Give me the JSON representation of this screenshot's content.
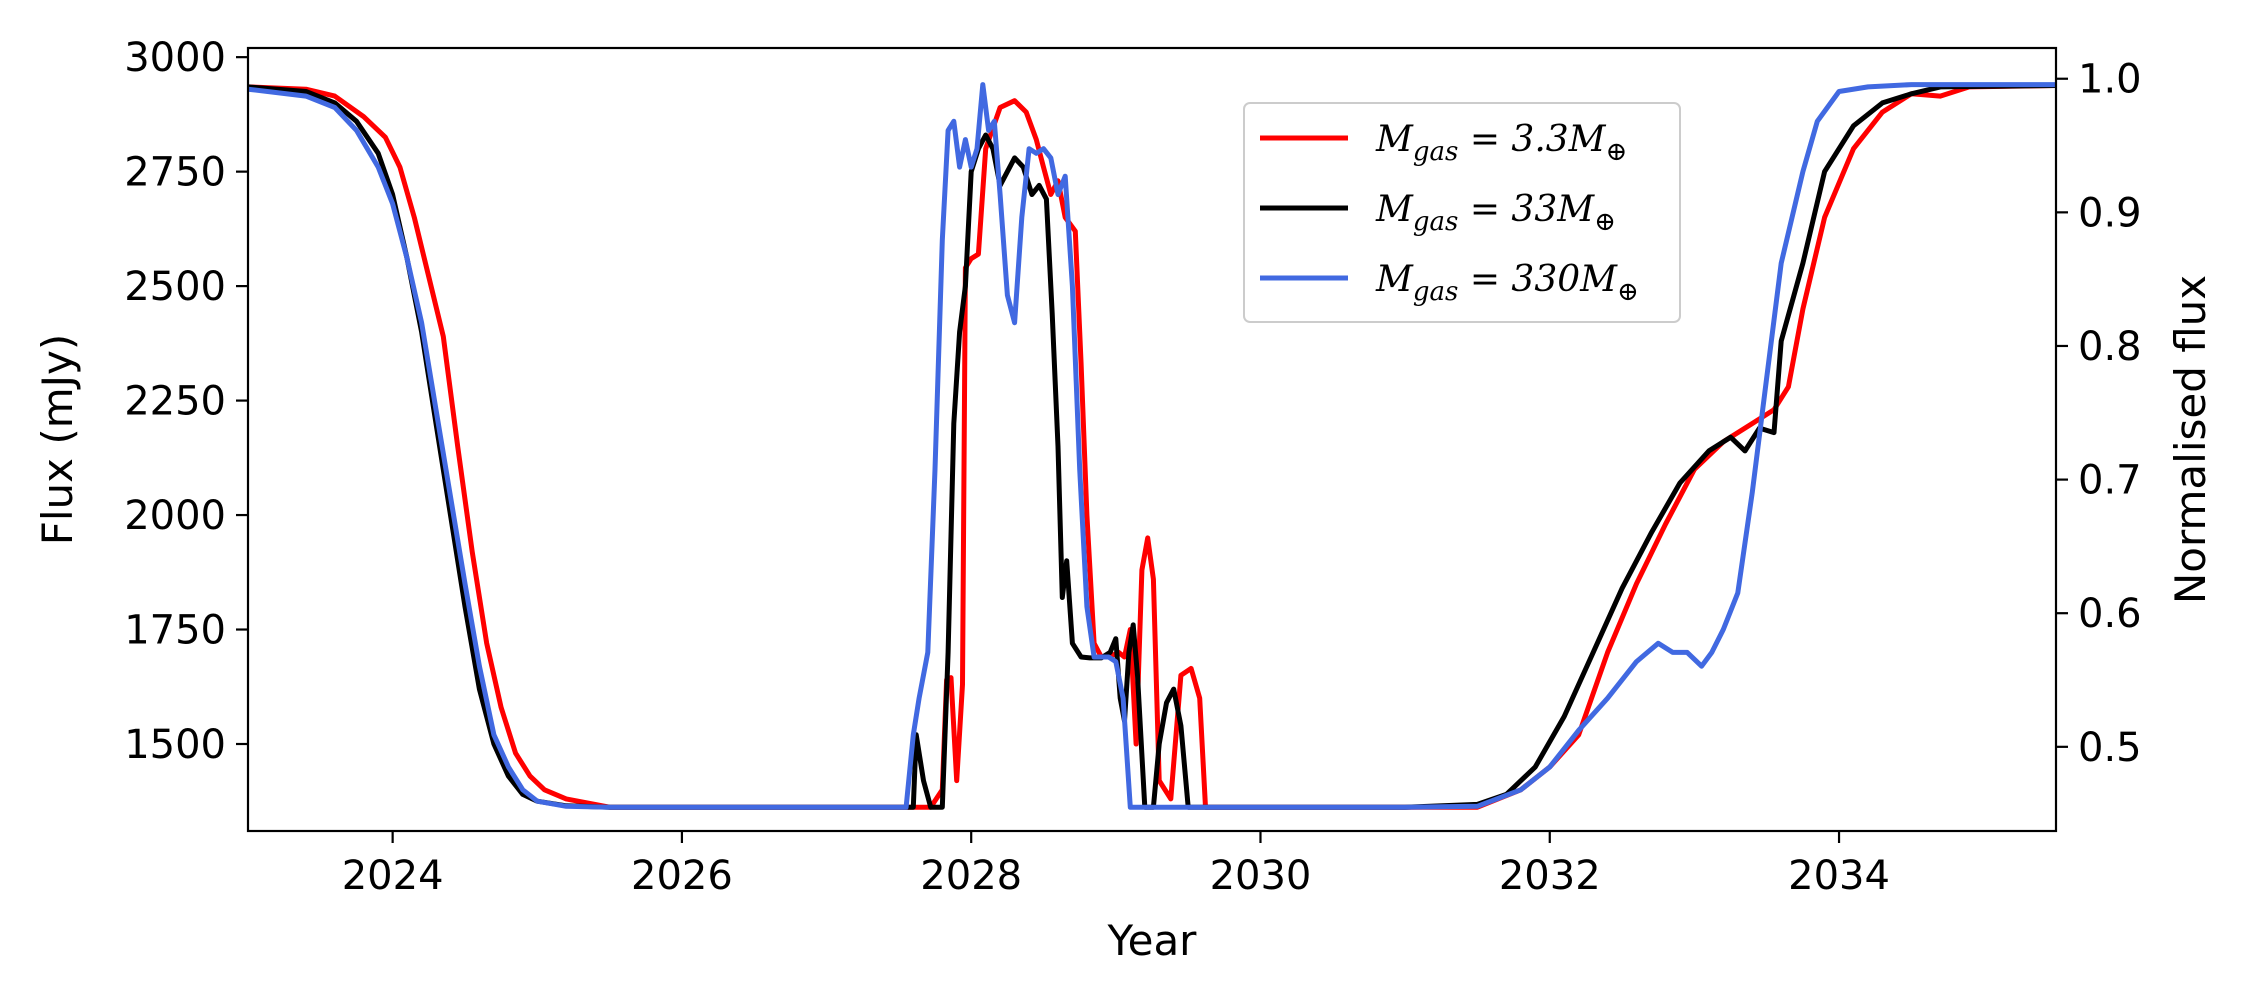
{
  "chart_data": {
    "type": "line",
    "title": "",
    "xlabel": "Year",
    "ylabel": "Flux (mJy)",
    "ylabel_right": "Normalised flux",
    "xlim": [
      2023.0,
      2035.5
    ],
    "ylim": [
      1310,
      3020
    ],
    "ylim_right": [
      0.437,
      1.023
    ],
    "xticks": [
      2024,
      2026,
      2028,
      2030,
      2032,
      2034
    ],
    "yticks": [
      1500,
      1750,
      2000,
      2250,
      2500,
      2750,
      3000
    ],
    "yticks_right": [
      0.5,
      0.6,
      0.7,
      0.8,
      0.9,
      1.0
    ],
    "grid": false,
    "legend_position": "top-right",
    "series": [
      {
        "name": "M_gas = 3.3M_⊕",
        "label_main": "M",
        "label_sub": "gas",
        "label_rest": " = 3.3M",
        "label_sym": "⊕",
        "color": "#ff0000",
        "points": [
          [
            2023.0,
            2935
          ],
          [
            2023.4,
            2930
          ],
          [
            2023.6,
            2915
          ],
          [
            2023.8,
            2870
          ],
          [
            2023.95,
            2825
          ],
          [
            2024.05,
            2760
          ],
          [
            2024.15,
            2650
          ],
          [
            2024.25,
            2520
          ],
          [
            2024.35,
            2390
          ],
          [
            2024.45,
            2150
          ],
          [
            2024.55,
            1920
          ],
          [
            2024.65,
            1720
          ],
          [
            2024.75,
            1580
          ],
          [
            2024.85,
            1480
          ],
          [
            2024.95,
            1430
          ],
          [
            2025.05,
            1400
          ],
          [
            2025.2,
            1380
          ],
          [
            2025.5,
            1362
          ],
          [
            2026.0,
            1362
          ],
          [
            2027.0,
            1362
          ],
          [
            2027.6,
            1362
          ],
          [
            2027.72,
            1362
          ],
          [
            2027.8,
            1400
          ],
          [
            2027.83,
            1640
          ],
          [
            2027.86,
            1645
          ],
          [
            2027.9,
            1420
          ],
          [
            2027.94,
            1630
          ],
          [
            2027.96,
            2540
          ],
          [
            2028.0,
            2560
          ],
          [
            2028.05,
            2570
          ],
          [
            2028.1,
            2800
          ],
          [
            2028.2,
            2890
          ],
          [
            2028.3,
            2905
          ],
          [
            2028.38,
            2880
          ],
          [
            2028.45,
            2820
          ],
          [
            2028.5,
            2760
          ],
          [
            2028.55,
            2700
          ],
          [
            2028.6,
            2730
          ],
          [
            2028.65,
            2650
          ],
          [
            2028.72,
            2620
          ],
          [
            2028.76,
            2330
          ],
          [
            2028.8,
            2000
          ],
          [
            2028.85,
            1720
          ],
          [
            2028.9,
            1690
          ],
          [
            2028.95,
            1690
          ],
          [
            2029.02,
            1700
          ],
          [
            2029.06,
            1690
          ],
          [
            2029.1,
            1750
          ],
          [
            2029.14,
            1500
          ],
          [
            2029.18,
            1880
          ],
          [
            2029.22,
            1950
          ],
          [
            2029.26,
            1860
          ],
          [
            2029.3,
            1420
          ],
          [
            2029.38,
            1380
          ],
          [
            2029.45,
            1650
          ],
          [
            2029.52,
            1665
          ],
          [
            2029.58,
            1600
          ],
          [
            2029.62,
            1362
          ],
          [
            2030.0,
            1362
          ],
          [
            2031.0,
            1362
          ],
          [
            2031.5,
            1362
          ],
          [
            2031.8,
            1400
          ],
          [
            2032.0,
            1450
          ],
          [
            2032.2,
            1520
          ],
          [
            2032.4,
            1700
          ],
          [
            2032.6,
            1850
          ],
          [
            2032.8,
            1980
          ],
          [
            2033.0,
            2100
          ],
          [
            2033.2,
            2160
          ],
          [
            2033.4,
            2200
          ],
          [
            2033.55,
            2230
          ],
          [
            2033.65,
            2280
          ],
          [
            2033.75,
            2450
          ],
          [
            2033.9,
            2650
          ],
          [
            2034.1,
            2800
          ],
          [
            2034.3,
            2880
          ],
          [
            2034.5,
            2920
          ],
          [
            2034.7,
            2915
          ],
          [
            2034.9,
            2935
          ],
          [
            2035.5,
            2938
          ]
        ]
      },
      {
        "name": "M_gas = 33M_⊕",
        "label_main": "M",
        "label_sub": "gas",
        "label_rest": " = 33M",
        "label_sym": "⊕",
        "color": "#000000",
        "points": [
          [
            2023.0,
            2935
          ],
          [
            2023.4,
            2925
          ],
          [
            2023.6,
            2900
          ],
          [
            2023.75,
            2860
          ],
          [
            2023.9,
            2790
          ],
          [
            2024.0,
            2700
          ],
          [
            2024.1,
            2560
          ],
          [
            2024.2,
            2400
          ],
          [
            2024.3,
            2200
          ],
          [
            2024.4,
            2000
          ],
          [
            2024.5,
            1800
          ],
          [
            2024.6,
            1620
          ],
          [
            2024.7,
            1500
          ],
          [
            2024.8,
            1430
          ],
          [
            2024.9,
            1390
          ],
          [
            2025.0,
            1375
          ],
          [
            2025.2,
            1365
          ],
          [
            2025.5,
            1362
          ],
          [
            2026.0,
            1362
          ],
          [
            2027.0,
            1362
          ],
          [
            2027.6,
            1362
          ],
          [
            2027.62,
            1520
          ],
          [
            2027.67,
            1420
          ],
          [
            2027.72,
            1362
          ],
          [
            2027.8,
            1362
          ],
          [
            2027.84,
            1700
          ],
          [
            2027.88,
            2200
          ],
          [
            2027.92,
            2400
          ],
          [
            2027.96,
            2500
          ],
          [
            2028.0,
            2750
          ],
          [
            2028.05,
            2800
          ],
          [
            2028.1,
            2830
          ],
          [
            2028.15,
            2800
          ],
          [
            2028.2,
            2720
          ],
          [
            2028.25,
            2750
          ],
          [
            2028.3,
            2780
          ],
          [
            2028.36,
            2760
          ],
          [
            2028.42,
            2700
          ],
          [
            2028.47,
            2720
          ],
          [
            2028.52,
            2690
          ],
          [
            2028.56,
            2440
          ],
          [
            2028.6,
            2150
          ],
          [
            2028.63,
            1820
          ],
          [
            2028.66,
            1900
          ],
          [
            2028.7,
            1720
          ],
          [
            2028.76,
            1690
          ],
          [
            2028.82,
            1688
          ],
          [
            2028.9,
            1688
          ],
          [
            2028.96,
            1700
          ],
          [
            2029.0,
            1730
          ],
          [
            2029.03,
            1600
          ],
          [
            2029.06,
            1550
          ],
          [
            2029.09,
            1700
          ],
          [
            2029.12,
            1760
          ],
          [
            2029.15,
            1650
          ],
          [
            2029.2,
            1362
          ],
          [
            2029.26,
            1362
          ],
          [
            2029.3,
            1500
          ],
          [
            2029.35,
            1590
          ],
          [
            2029.4,
            1620
          ],
          [
            2029.45,
            1540
          ],
          [
            2029.5,
            1362
          ],
          [
            2030.0,
            1362
          ],
          [
            2031.0,
            1362
          ],
          [
            2031.5,
            1368
          ],
          [
            2031.7,
            1390
          ],
          [
            2031.9,
            1450
          ],
          [
            2032.1,
            1560
          ],
          [
            2032.3,
            1700
          ],
          [
            2032.5,
            1840
          ],
          [
            2032.7,
            1960
          ],
          [
            2032.9,
            2070
          ],
          [
            2033.1,
            2140
          ],
          [
            2033.25,
            2170
          ],
          [
            2033.35,
            2140
          ],
          [
            2033.45,
            2190
          ],
          [
            2033.55,
            2180
          ],
          [
            2033.6,
            2380
          ],
          [
            2033.75,
            2550
          ],
          [
            2033.9,
            2750
          ],
          [
            2034.1,
            2850
          ],
          [
            2034.3,
            2900
          ],
          [
            2034.5,
            2920
          ],
          [
            2034.7,
            2935
          ],
          [
            2035.5,
            2938
          ]
        ]
      },
      {
        "name": "M_gas = 330M_⊕",
        "label_main": "M",
        "label_sub": "gas",
        "label_rest": " = 330M",
        "label_sym": "⊕",
        "color": "#4169e1",
        "points": [
          [
            2023.0,
            2930
          ],
          [
            2023.4,
            2915
          ],
          [
            2023.6,
            2890
          ],
          [
            2023.75,
            2840
          ],
          [
            2023.9,
            2760
          ],
          [
            2024.0,
            2680
          ],
          [
            2024.1,
            2560
          ],
          [
            2024.2,
            2420
          ],
          [
            2024.3,
            2230
          ],
          [
            2024.4,
            2040
          ],
          [
            2024.5,
            1850
          ],
          [
            2024.6,
            1670
          ],
          [
            2024.7,
            1520
          ],
          [
            2024.8,
            1450
          ],
          [
            2024.9,
            1400
          ],
          [
            2025.0,
            1375
          ],
          [
            2025.2,
            1364
          ],
          [
            2025.5,
            1362
          ],
          [
            2026.0,
            1362
          ],
          [
            2027.0,
            1362
          ],
          [
            2027.55,
            1362
          ],
          [
            2027.6,
            1520
          ],
          [
            2027.64,
            1600
          ],
          [
            2027.7,
            1700
          ],
          [
            2027.75,
            2100
          ],
          [
            2027.8,
            2600
          ],
          [
            2027.84,
            2840
          ],
          [
            2027.88,
            2860
          ],
          [
            2027.92,
            2760
          ],
          [
            2027.96,
            2820
          ],
          [
            2028.0,
            2760
          ],
          [
            2028.04,
            2800
          ],
          [
            2028.08,
            2940
          ],
          [
            2028.12,
            2840
          ],
          [
            2028.16,
            2860
          ],
          [
            2028.2,
            2700
          ],
          [
            2028.25,
            2480
          ],
          [
            2028.3,
            2420
          ],
          [
            2028.35,
            2650
          ],
          [
            2028.4,
            2800
          ],
          [
            2028.45,
            2790
          ],
          [
            2028.5,
            2800
          ],
          [
            2028.55,
            2780
          ],
          [
            2028.6,
            2700
          ],
          [
            2028.65,
            2740
          ],
          [
            2028.7,
            2500
          ],
          [
            2028.75,
            2100
          ],
          [
            2028.8,
            1800
          ],
          [
            2028.85,
            1690
          ],
          [
            2028.95,
            1690
          ],
          [
            2029.0,
            1680
          ],
          [
            2029.05,
            1600
          ],
          [
            2029.1,
            1362
          ],
          [
            2030.0,
            1362
          ],
          [
            2031.0,
            1362
          ],
          [
            2031.5,
            1364
          ],
          [
            2031.8,
            1400
          ],
          [
            2032.0,
            1450
          ],
          [
            2032.2,
            1530
          ],
          [
            2032.4,
            1600
          ],
          [
            2032.6,
            1680
          ],
          [
            2032.75,
            1720
          ],
          [
            2032.85,
            1700
          ],
          [
            2032.95,
            1700
          ],
          [
            2033.05,
            1670
          ],
          [
            2033.12,
            1700
          ],
          [
            2033.2,
            1750
          ],
          [
            2033.3,
            1830
          ],
          [
            2033.4,
            2050
          ],
          [
            2033.5,
            2300
          ],
          [
            2033.6,
            2550
          ],
          [
            2033.75,
            2750
          ],
          [
            2033.85,
            2860
          ],
          [
            2034.0,
            2925
          ],
          [
            2034.2,
            2935
          ],
          [
            2034.5,
            2940
          ],
          [
            2035.5,
            2940
          ]
        ]
      }
    ]
  }
}
